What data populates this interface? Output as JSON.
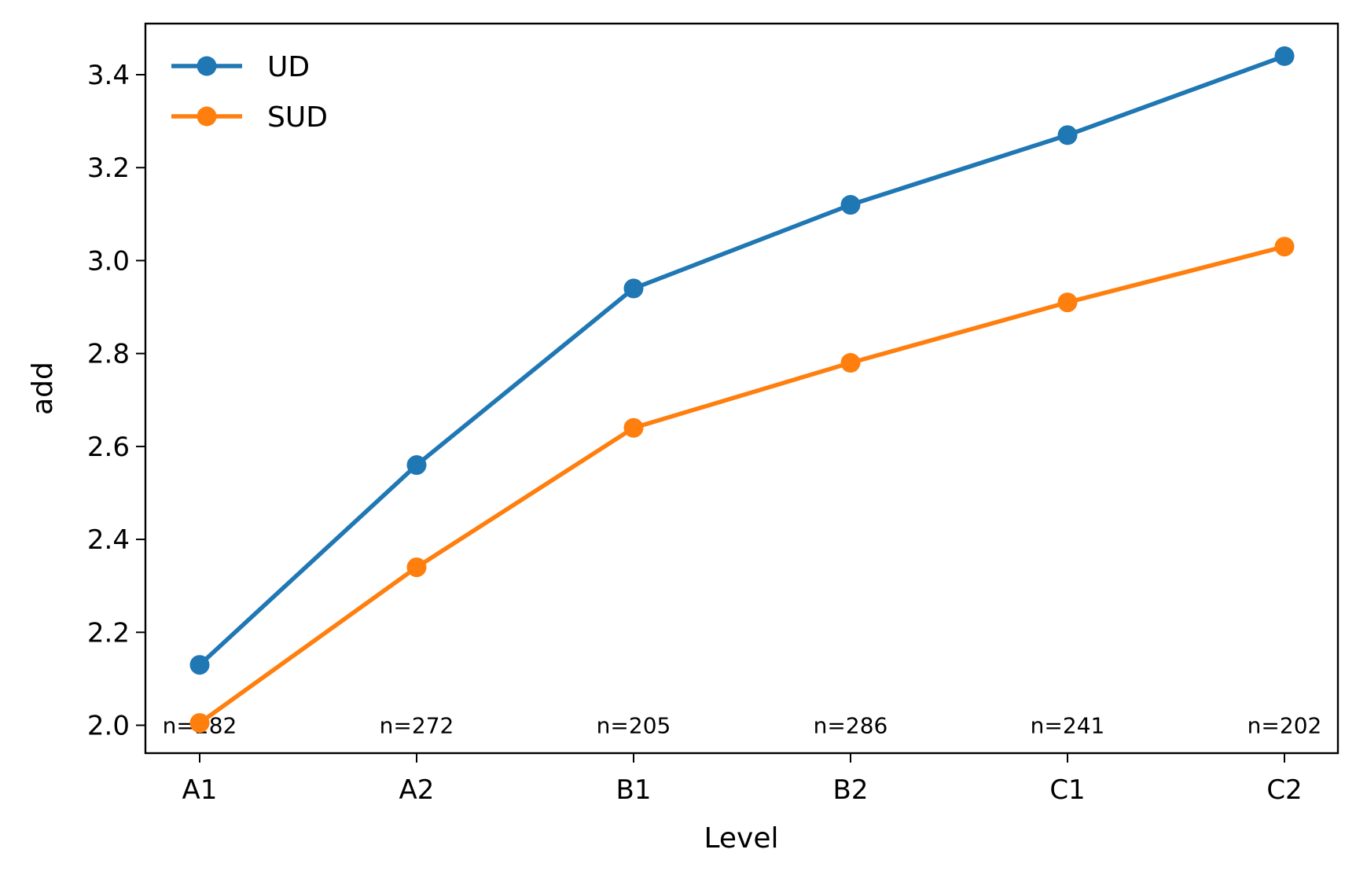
{
  "chart_data": {
    "type": "line",
    "title": "",
    "xlabel": "Level",
    "ylabel": "add",
    "categories": [
      "A1",
      "A2",
      "B1",
      "B2",
      "C1",
      "C2"
    ],
    "ylim": [
      1.94,
      3.51
    ],
    "yticks": [
      2.0,
      2.2,
      2.4,
      2.6,
      2.8,
      3.0,
      3.2,
      3.4
    ],
    "ytick_labels": [
      "2.0",
      "2.2",
      "2.4",
      "2.6",
      "2.8",
      "3.0",
      "3.2",
      "3.4"
    ],
    "grid": false,
    "legend_position": "top-left",
    "series": [
      {
        "name": "UD",
        "color": "#1f77b4",
        "values": [
          2.13,
          2.56,
          2.94,
          3.12,
          3.27,
          3.44
        ]
      },
      {
        "name": "SUD",
        "color": "#ff7f0e",
        "values": [
          2.005,
          2.34,
          2.64,
          2.78,
          2.91,
          3.03
        ]
      }
    ],
    "annotations": [
      "n=282",
      "n=272",
      "n=205",
      "n=286",
      "n=241",
      "n=202"
    ]
  }
}
